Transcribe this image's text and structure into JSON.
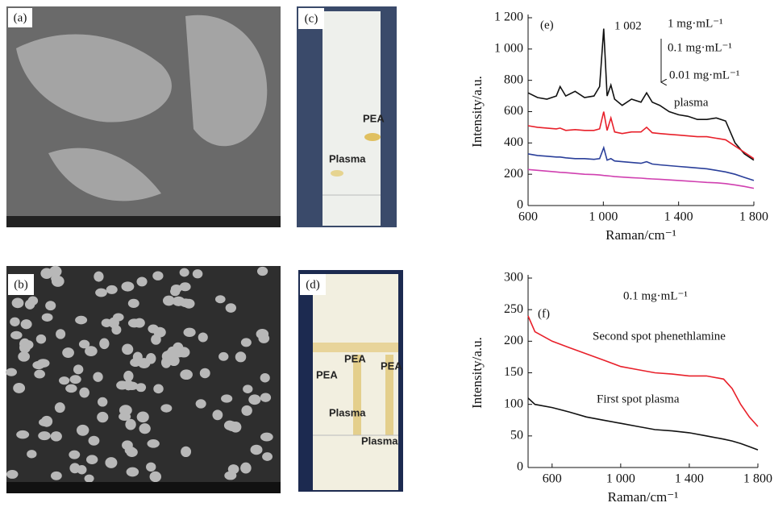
{
  "panels": [
    {
      "label": "(a)"
    },
    {
      "label": "(b)"
    },
    {
      "label": "(c)",
      "texts": [
        "PEA",
        "Plasma"
      ]
    },
    {
      "label": "(d)",
      "texts": [
        "PEA",
        "PEA",
        "PEA",
        "Plasma",
        "Plasma"
      ]
    }
  ],
  "chart_data": [
    {
      "type": "line",
      "label": "(e)",
      "xlabel": "Raman/cm⁻¹",
      "ylabel": "Intensity/a.u.",
      "annotations": [
        "1 002",
        "1 mg·mL⁻¹",
        "0.1 mg·mL⁻¹",
        "0.01 mg·mL⁻¹",
        "plasma"
      ],
      "xlim": [
        600,
        1800
      ],
      "ylim": [
        0,
        1200
      ],
      "xticks": [
        600,
        {
          "value": 1000,
          "label": "1 000"
        },
        {
          "value": 1400,
          "label": "1 400"
        },
        {
          "value": 1800,
          "label": "1 800"
        }
      ],
      "yticks": [
        0,
        200,
        400,
        600,
        800,
        {
          "value": 1000,
          "label": "1 000"
        },
        {
          "value": 1200,
          "label": "1 200"
        }
      ],
      "x": [
        600,
        650,
        700,
        750,
        770,
        800,
        850,
        900,
        950,
        980,
        1002,
        1020,
        1040,
        1060,
        1100,
        1150,
        1200,
        1230,
        1260,
        1300,
        1350,
        1400,
        1450,
        1500,
        1550,
        1600,
        1650,
        1700,
        1750,
        1800
      ],
      "series": [
        {
          "color": "#111111",
          "values": [
            720,
            690,
            680,
            700,
            760,
            700,
            730,
            690,
            700,
            760,
            1130,
            700,
            770,
            680,
            640,
            680,
            660,
            720,
            660,
            640,
            600,
            580,
            570,
            550,
            550,
            560,
            540,
            400,
            330,
            290
          ]
        },
        {
          "color": "#e8202a",
          "values": [
            510,
            500,
            495,
            490,
            495,
            480,
            485,
            480,
            480,
            490,
            600,
            480,
            560,
            470,
            460,
            470,
            470,
            500,
            465,
            460,
            455,
            450,
            445,
            440,
            440,
            430,
            420,
            380,
            340,
            300
          ]
        },
        {
          "color": "#2a3f9a",
          "values": [
            330,
            320,
            315,
            310,
            310,
            305,
            300,
            300,
            295,
            300,
            370,
            290,
            300,
            285,
            280,
            275,
            270,
            280,
            265,
            260,
            255,
            250,
            245,
            240,
            235,
            225,
            215,
            200,
            180,
            160
          ]
        },
        {
          "color": "#d040b0",
          "values": [
            230,
            225,
            220,
            215,
            212,
            210,
            205,
            200,
            198,
            195,
            192,
            190,
            188,
            185,
            182,
            178,
            175,
            172,
            170,
            168,
            164,
            160,
            156,
            152,
            148,
            145,
            140,
            132,
            122,
            110
          ]
        }
      ]
    },
    {
      "type": "line",
      "label": "(f)",
      "xlabel": "Raman/cm⁻¹",
      "ylabel": "Intensity/a.u.",
      "annotations": [
        "0.1 mg·mL⁻¹",
        "Second spot phenethlamine",
        "First spot plasma"
      ],
      "xlim": [
        460,
        1800
      ],
      "ylim": [
        0,
        300
      ],
      "xticks": [
        600,
        {
          "value": 1000,
          "label": "1 000"
        },
        {
          "value": 1400,
          "label": "1 400"
        },
        {
          "value": 1800,
          "label": "1 800"
        }
      ],
      "yticks": [
        0,
        50,
        100,
        150,
        200,
        250,
        300
      ],
      "x": [
        460,
        500,
        600,
        700,
        800,
        900,
        1000,
        1100,
        1200,
        1300,
        1400,
        1500,
        1600,
        1650,
        1700,
        1750,
        1800
      ],
      "series": [
        {
          "color": "#e8202a",
          "values": [
            240,
            215,
            200,
            190,
            180,
            170,
            160,
            155,
            150,
            148,
            145,
            145,
            140,
            125,
            100,
            80,
            65
          ]
        },
        {
          "color": "#111111",
          "values": [
            110,
            100,
            95,
            88,
            80,
            75,
            70,
            65,
            60,
            58,
            55,
            50,
            45,
            42,
            38,
            33,
            28
          ]
        }
      ]
    }
  ]
}
